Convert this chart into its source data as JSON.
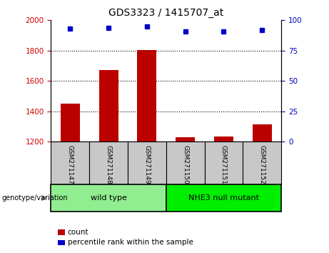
{
  "title": "GDS3323 / 1415707_at",
  "samples": [
    "GSM271147",
    "GSM271148",
    "GSM271149",
    "GSM271150",
    "GSM271151",
    "GSM271152"
  ],
  "counts": [
    1450,
    1670,
    1805,
    1230,
    1235,
    1315
  ],
  "percentile_ranks": [
    93,
    94,
    95,
    91,
    91,
    92
  ],
  "group_defs": [
    {
      "start": 0,
      "end": 2,
      "label": "wild type",
      "color": "#90EE90"
    },
    {
      "start": 3,
      "end": 5,
      "label": "NHE3 null mutant",
      "color": "#00EE00"
    }
  ],
  "ylim_left": [
    1200,
    2000
  ],
  "ylim_right": [
    0,
    100
  ],
  "yticks_left": [
    1200,
    1400,
    1600,
    1800,
    2000
  ],
  "yticks_right": [
    0,
    25,
    50,
    75,
    100
  ],
  "bar_color": "#BB0000",
  "dot_color": "#0000CC",
  "bar_width": 0.5,
  "group_label": "genotype/variation",
  "legend_count": "count",
  "legend_percentile": "percentile rank within the sample",
  "left_axis_color": "#CC0000",
  "right_axis_color": "#0000BB",
  "xtick_bg": "#C8C8C8"
}
